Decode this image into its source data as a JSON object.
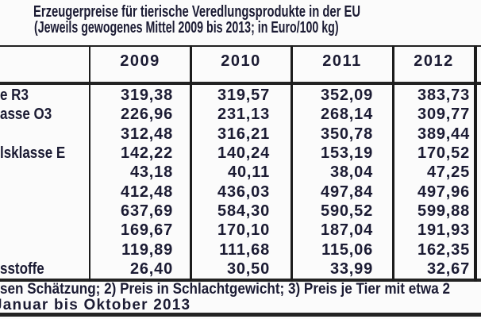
{
  "title": {
    "line1": "Erzeugerpreise für tierische Veredlungsprodukte in der EU",
    "line2": "(Jeweils gewogenes Mittel 2009 bis 2013; in Euro/100 kg)"
  },
  "table": {
    "columns": [
      "2009",
      "2010",
      "2011",
      "2012"
    ],
    "rows": [
      {
        "label_fragment": "e R3",
        "values": [
          "319,38",
          "319,57",
          "352,09",
          "383,73"
        ]
      },
      {
        "label_fragment": "asse O3",
        "values": [
          "226,96",
          "231,13",
          "268,14",
          "309,77"
        ]
      },
      {
        "label_fragment": "",
        "values": [
          "312,48",
          "316,21",
          "350,78",
          "389,44"
        ]
      },
      {
        "label_fragment": "lsklasse E",
        "values": [
          "142,22",
          "140,24",
          "153,19",
          "170,52"
        ]
      },
      {
        "label_fragment": "",
        "values": [
          "43,18",
          "40,11",
          "38,04",
          "47,25"
        ]
      },
      {
        "label_fragment": "",
        "values": [
          "412,48",
          "436,03",
          "497,84",
          "497,96"
        ]
      },
      {
        "label_fragment": "",
        "values": [
          "637,69",
          "584,30",
          "590,52",
          "599,88"
        ]
      },
      {
        "label_fragment": "",
        "values": [
          "169,67",
          "170,10",
          "187,04",
          "191,93"
        ]
      },
      {
        "label_fragment": "",
        "values": [
          "119,89",
          "111,68",
          "115,06",
          "162,35"
        ]
      },
      {
        "label_fragment": "sstoffe",
        "values": [
          "26,40",
          "30,50",
          "33,99",
          "32,67"
        ]
      }
    ]
  },
  "footnotes": {
    "line1": "sen Schätzung; 2) Preis in Schlachtgewicht; 3) Preis je Tier mit etwa 2",
    "line2": "Januar bis Oktober 2013"
  },
  "colors": {
    "text": "#1b1b33",
    "border": "#222222",
    "background": "#fbfbfb"
  }
}
